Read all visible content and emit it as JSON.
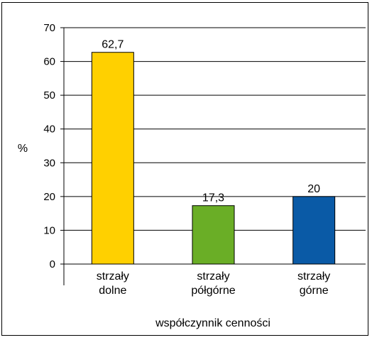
{
  "chart_data": {
    "type": "bar",
    "categories": [
      [
        "strzały",
        "dolne"
      ],
      [
        "strzały",
        "półgórne"
      ],
      [
        "strzały",
        "górne"
      ]
    ],
    "values": [
      62.7,
      17.3,
      20
    ],
    "value_labels": [
      "62,7",
      "17,3",
      "20"
    ],
    "colors": [
      "#ffd000",
      "#6aae26",
      "#0a5aa6"
    ],
    "xlabel": "współczynnik cenności",
    "ylabel": "%",
    "ylim": [
      0,
      70
    ],
    "yticks": [
      0,
      10,
      20,
      30,
      40,
      50,
      60,
      70
    ],
    "grid": true,
    "legend": "none"
  }
}
